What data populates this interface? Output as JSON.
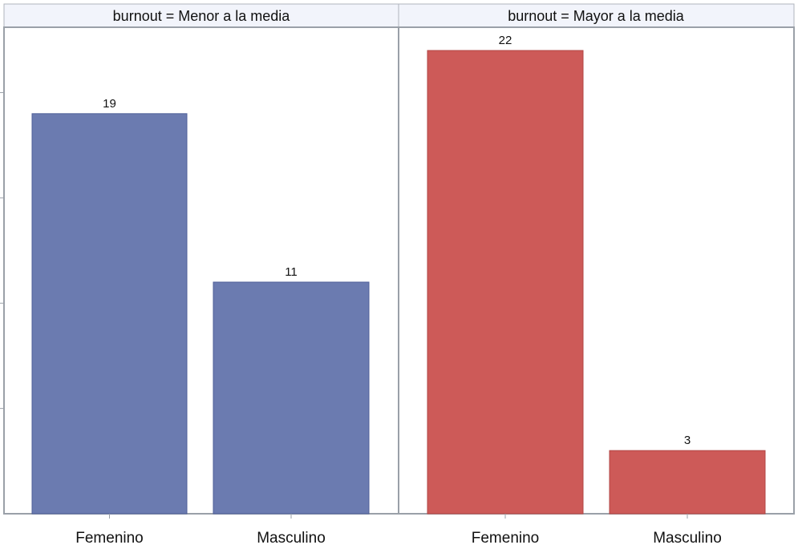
{
  "chart_data": {
    "type": "bar",
    "panel_variable": "burnout",
    "categories": [
      "Femenino",
      "Masculino"
    ],
    "y_tick_values": [
      5,
      10,
      15,
      20
    ],
    "ylim": [
      0,
      23
    ],
    "grid": false,
    "panels": [
      {
        "header": "burnout = Menor a la media",
        "color": "#6b7bb0",
        "values": [
          19,
          11
        ]
      },
      {
        "header": "burnout = Mayor a la media",
        "color": "#cd5a58",
        "values": [
          22,
          3
        ]
      }
    ]
  }
}
